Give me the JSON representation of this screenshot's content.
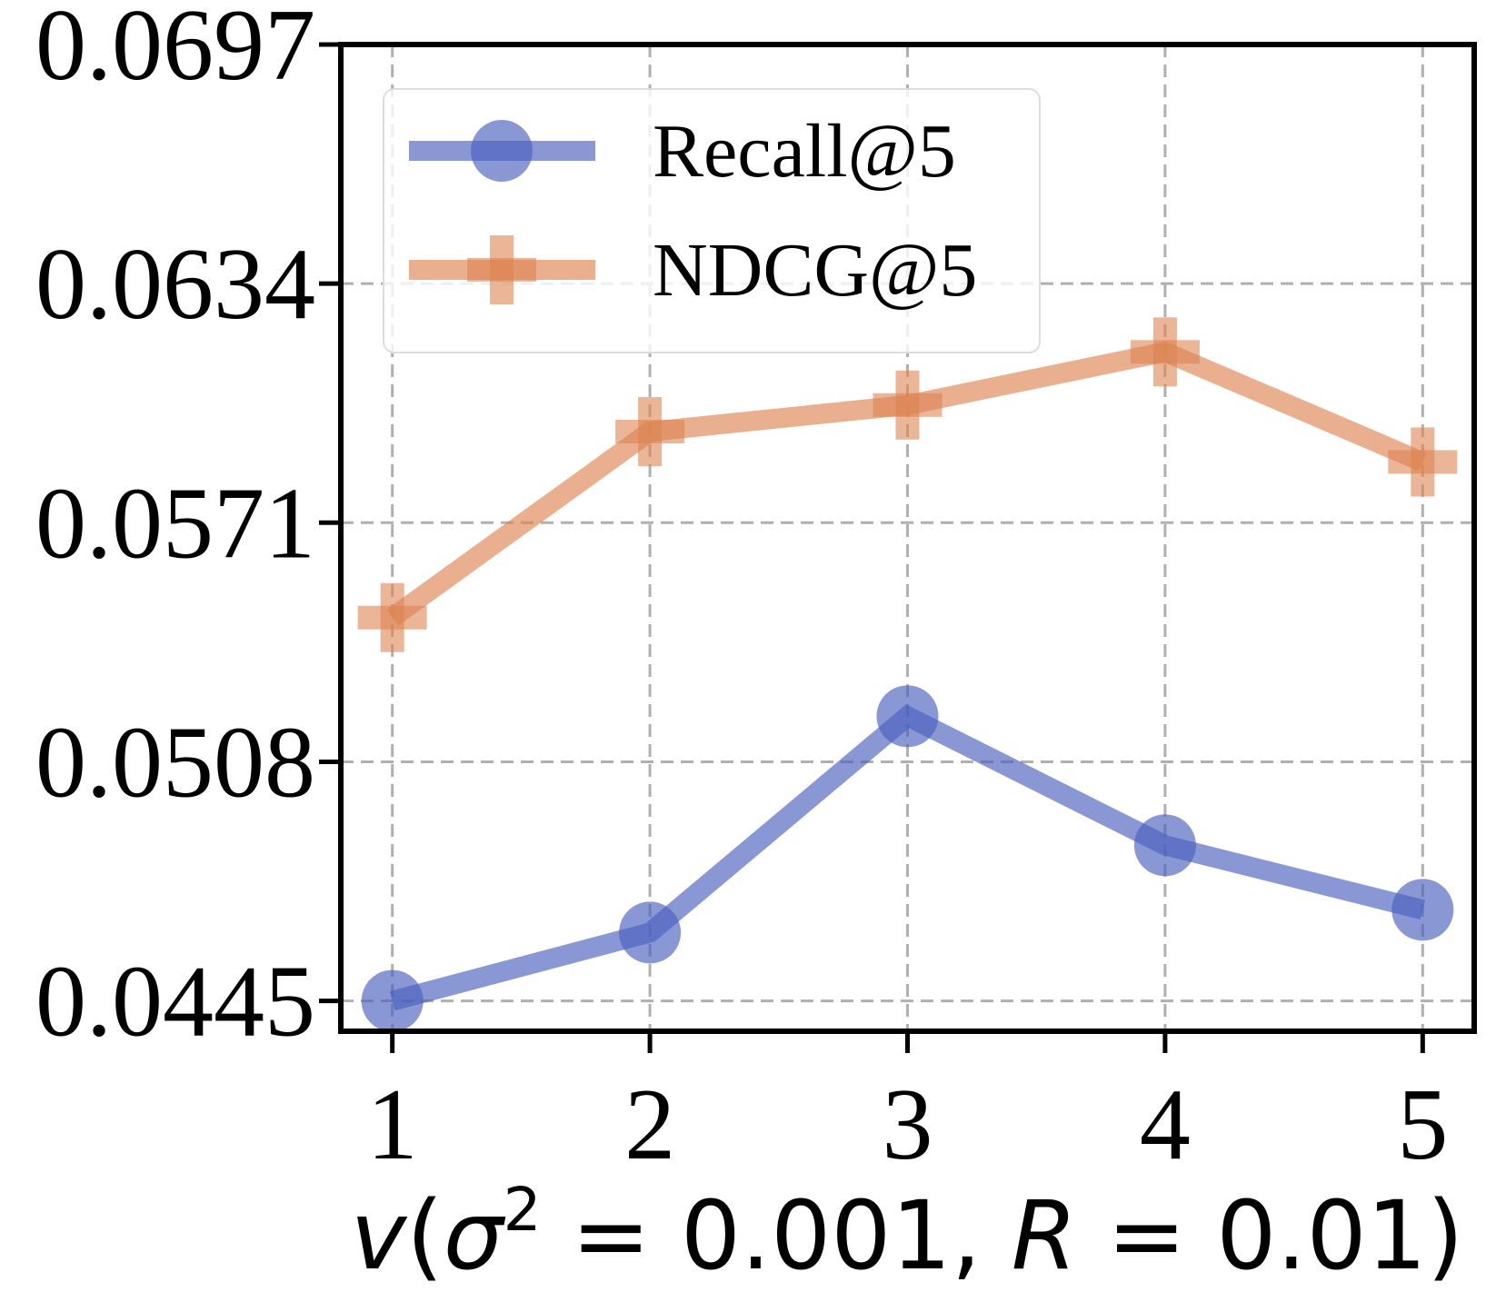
{
  "chart_data": {
    "type": "line",
    "title": "",
    "xlabel": "v(σ² = 0.001, R = 0.01)",
    "xlabel_parts": {
      "v": "v",
      "open_paren": "(",
      "sigma": "σ",
      "sup": "2",
      "eq1": " = 0.001, ",
      "r": "R",
      "eq2": " = 0.01)"
    },
    "ylabel": "",
    "x": [
      1,
      2,
      3,
      4,
      5
    ],
    "xticks": [
      "1",
      "2",
      "3",
      "4",
      "5"
    ],
    "xlim": [
      0.8,
      5.2
    ],
    "yticks": [
      "0.0445",
      "0.0508",
      "0.0571",
      "0.0634",
      "0.0697"
    ],
    "ytick_values": [
      0.0445,
      0.0508,
      0.0571,
      0.0634,
      0.0697
    ],
    "ylim": [
      0.0437,
      0.0697
    ],
    "grid": true,
    "legend_position": "top-left",
    "series": [
      {
        "name": "Recall@5",
        "marker": "circle",
        "color": "#4a5fbf",
        "values": [
          0.0445,
          0.0463,
          0.052,
          0.0486,
          0.0469
        ]
      },
      {
        "name": "NDCG@5",
        "marker": "plus",
        "color": "#dd8452",
        "values": [
          0.0546,
          0.0595,
          0.0602,
          0.0616,
          0.0587
        ]
      }
    ]
  }
}
